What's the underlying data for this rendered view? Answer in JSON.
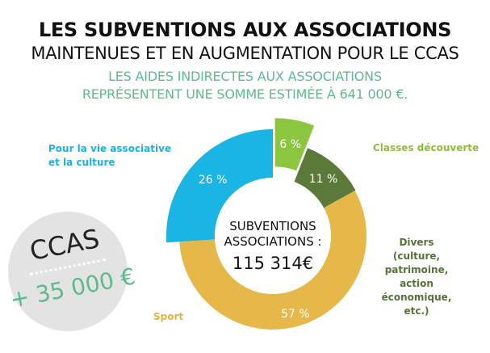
{
  "header": {
    "title_line1": "LES SUBVENTIONS AUX ASSOCIATIONS",
    "title_line2": "MAINTENUES ET EN AUGMENTATION POUR LE CCAS",
    "subtitle_line1": "LES AIDES INDIRECTES AUX ASSOCIATIONS",
    "subtitle_line2": "REPRÉSENTENT UNE SOMME ESTIMÉE À 641 000 €."
  },
  "chart_data": {
    "type": "pie",
    "donut": true,
    "categories": [
      "Pour la vie associative et la culture",
      "Classes découverte",
      "Divers (culture, patrimoine, action économique, etc.)",
      "Sport"
    ],
    "values": [
      26,
      6,
      11,
      57
    ],
    "value_labels": [
      "26 %",
      "6 %",
      "11 %",
      "57 %"
    ],
    "colors": [
      "#1ab4e5",
      "#8cc63f",
      "#5b7a3a",
      "#e6b84a"
    ],
    "center_label": {
      "line1": "SUBVENTIONS",
      "line2": "ASSOCIATIONS :",
      "line3": "115 314€"
    }
  },
  "labels": {
    "culture_line1": "Pour la vie associative",
    "culture_line2": "et la culture",
    "classes": "Classes découverte",
    "divers_line1": "Divers",
    "divers_line2": "(culture,",
    "divers_line3": "patrimoine,",
    "divers_line4": "action",
    "divers_line5": "économique,",
    "divers_line6": "etc.)",
    "sport": "Sport"
  },
  "ccas": {
    "label": "CCAS",
    "amount": "+ 35 000 €"
  }
}
